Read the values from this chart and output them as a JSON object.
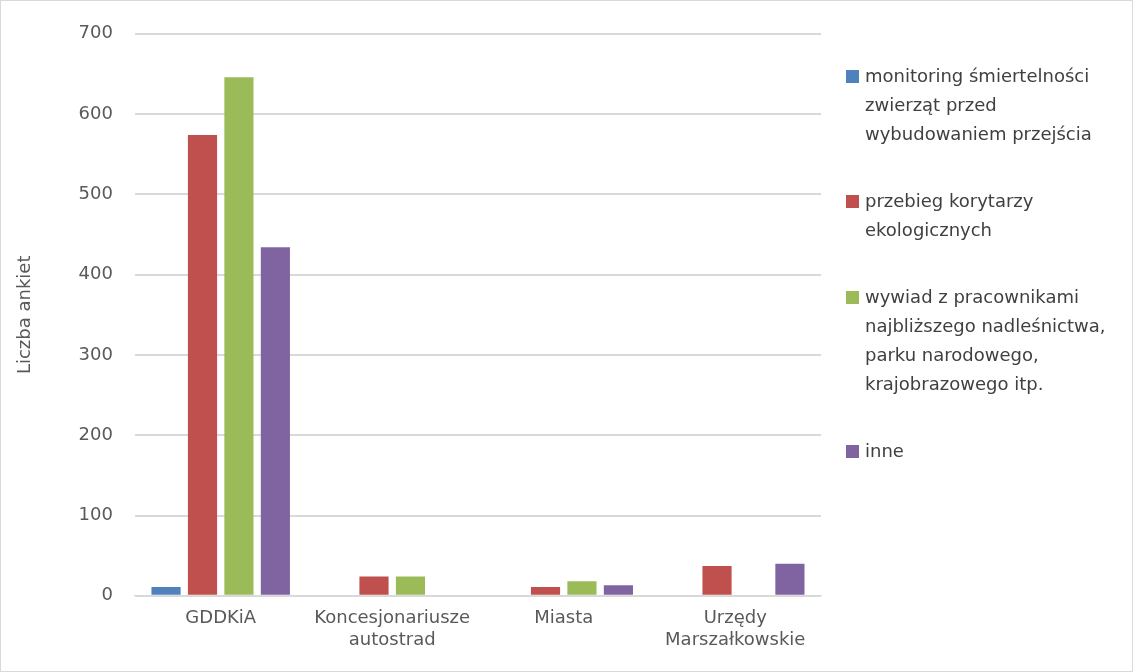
{
  "chart_data": {
    "type": "bar",
    "ylabel": "Liczba ankiet",
    "categories": [
      "GDDKiA",
      "Koncesjonariusze autostrad",
      "Miasta",
      "Urzędy Marszałkowskie"
    ],
    "series": [
      {
        "name": "monitoring śmiertelności zwierząt przed wybudowaniem przejścia",
        "color": "#4f81bd",
        "values": [
          11,
          null,
          null,
          null
        ]
      },
      {
        "name": "przebieg korytarzy ekologicznych",
        "color": "#c0504d",
        "values": [
          574,
          24,
          11,
          37
        ]
      },
      {
        "name": "wywiad z pracownikami najbliższego nadleśnictwa, parku narodowego, krajobrazowego itp.",
        "color": "#9bbb59",
        "values": [
          646,
          24,
          18,
          null
        ]
      },
      {
        "name": "inne",
        "color": "#8064a2",
        "values": [
          434,
          null,
          13,
          40
        ]
      }
    ],
    "ylim": [
      0,
      700
    ],
    "yticks": [
      0,
      100,
      200,
      300,
      400,
      500,
      600,
      700
    ],
    "grid": "y",
    "legend": "right"
  }
}
